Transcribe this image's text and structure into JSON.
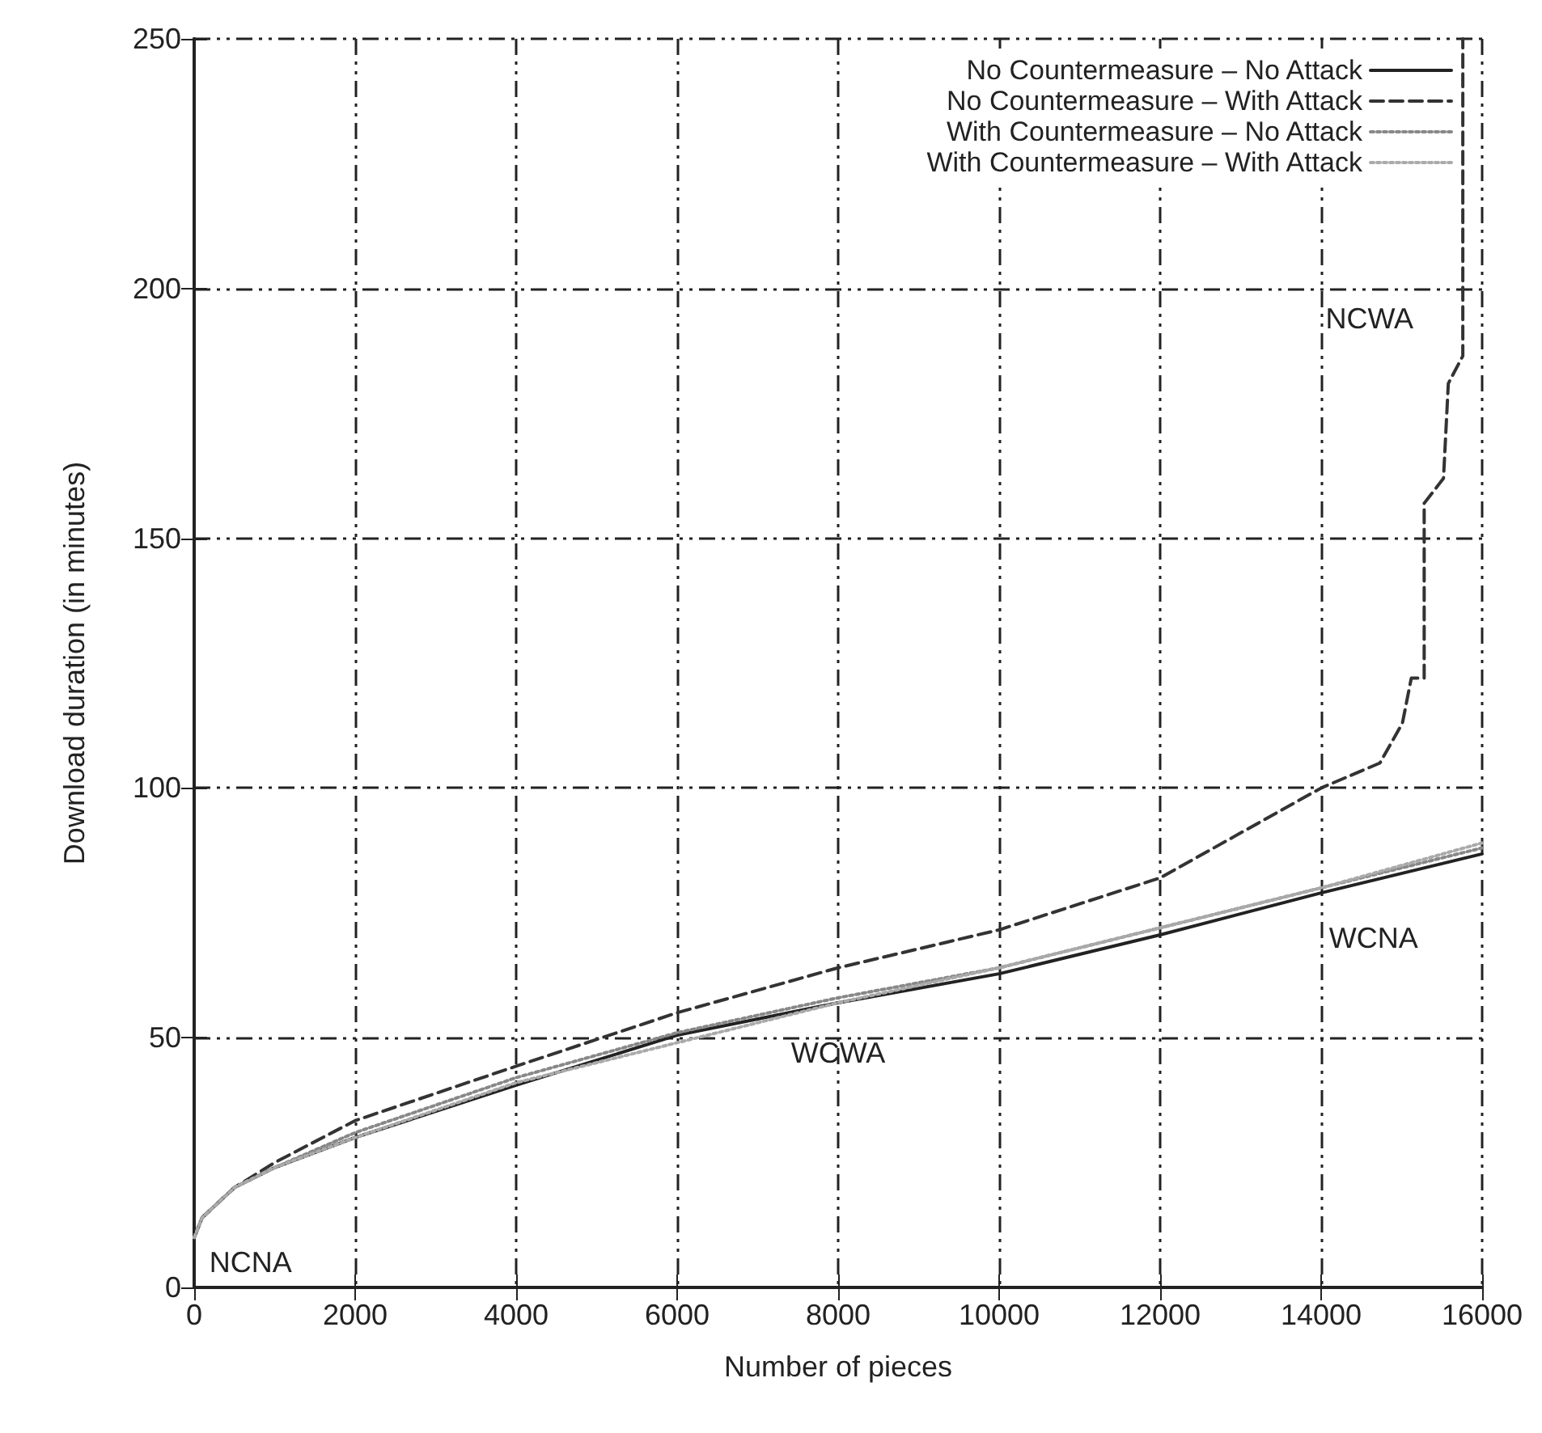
{
  "chart_data": {
    "type": "line",
    "xlabel": "Number of pieces",
    "ylabel": "Download duration (in minutes)",
    "xlim": [
      0,
      16000
    ],
    "xticks": [
      0,
      2000,
      4000,
      6000,
      8000,
      10000,
      12000,
      14000,
      16000
    ],
    "ylim": [
      0,
      250
    ],
    "yticks": [
      0,
      50,
      100,
      150,
      200,
      250
    ],
    "grid": true,
    "legend": "top right",
    "marker": "none",
    "series": [
      {
        "name": "No Countermeasure – No Attack",
        "color": "#222222",
        "line_style": "solid",
        "x": [
          0,
          100,
          500,
          1000,
          2000,
          4000,
          6000,
          8000,
          10000,
          12000,
          14000,
          16000
        ],
        "values": [
          10,
          14,
          20,
          24,
          30,
          40.5,
          50.5,
          57,
          62.8,
          70.6,
          79,
          86.8
        ]
      },
      {
        "name": "No Countermeasure – With Attack",
        "color": "#333333",
        "line_style": "dashed",
        "x": [
          0,
          100,
          500,
          1000,
          2000,
          4000,
          6000,
          8000,
          10000,
          12000,
          14000,
          14730,
          15010,
          15120,
          15280,
          15280,
          15520,
          15580,
          15760,
          15760
        ],
        "values": [
          10,
          14,
          20,
          25,
          33.4,
          44.3,
          55,
          64,
          71.6,
          82,
          100,
          105,
          113,
          122,
          122,
          157,
          162,
          181,
          186.5,
          250
        ]
      },
      {
        "name": "With Countermeasure – No Attack",
        "color": "#888888",
        "line_style": "dotted",
        "x": [
          0,
          100,
          500,
          1000,
          2000,
          4000,
          6000,
          8000,
          10000,
          12000,
          14000,
          16000
        ],
        "values": [
          10,
          14,
          20,
          24,
          31,
          42,
          51,
          58,
          64,
          72,
          80,
          88
        ]
      },
      {
        "name": "With Countermeasure – With Attack",
        "color": "#aaaaaa",
        "line_style": "dotted",
        "x": [
          0,
          100,
          500,
          1000,
          2000,
          4000,
          6000,
          8000,
          10000,
          12000,
          14000,
          16000
        ],
        "values": [
          10,
          14,
          20,
          24,
          30,
          41,
          49,
          57,
          64,
          72,
          80,
          89
        ]
      }
    ],
    "annotations": [
      "NCWA",
      "WCNA",
      "WCWA",
      "NCNA"
    ]
  }
}
